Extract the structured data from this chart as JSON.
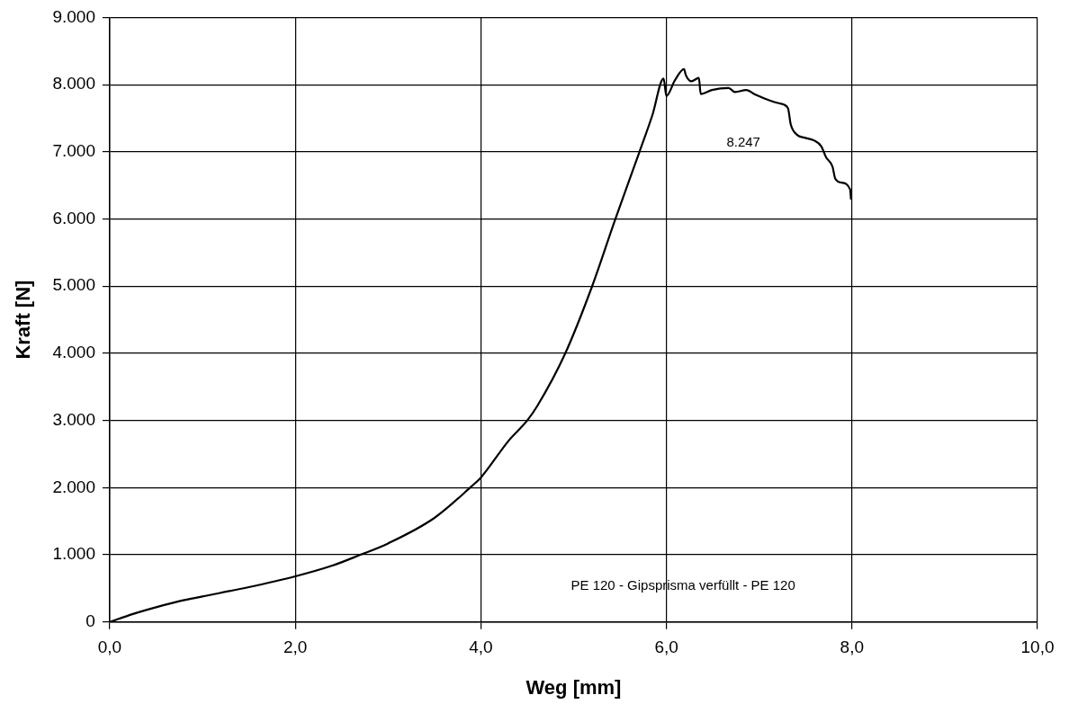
{
  "chart_data": {
    "type": "line",
    "xlabel": "Weg [mm]",
    "ylabel": "Kraft [N]",
    "annotations": [
      "8.247",
      "PE 120 - Gipsprisma verfüllt - PE 120"
    ],
    "xlim": [
      0,
      10
    ],
    "ylim": [
      0,
      9000
    ],
    "xticks": [
      {
        "value": 0,
        "label": "0,0"
      },
      {
        "value": 2,
        "label": "2,0"
      },
      {
        "value": 4,
        "label": "4,0"
      },
      {
        "value": 6,
        "label": "6,0"
      },
      {
        "value": 8,
        "label": "8,0"
      },
      {
        "value": 10,
        "label": "10,0"
      }
    ],
    "yticks": [
      0,
      {
        "value": 1000,
        "label": "1.000"
      },
      {
        "value": 2000,
        "label": "2.000"
      },
      {
        "value": 3000,
        "label": "3.000"
      },
      {
        "value": 4000,
        "label": "4.000"
      },
      {
        "value": 5000,
        "label": "5.000"
      },
      {
        "value": 6000,
        "label": "6.000"
      },
      {
        "value": 7000,
        "label": "7.000"
      },
      {
        "value": 8000,
        "label": "8.000"
      },
      {
        "value": 9000,
        "label": "9.000"
      }
    ],
    "grid": true,
    "legend": false,
    "marker": "none",
    "line_style": "solid",
    "series": [
      {
        "color": "#000000",
        "x": [
          0,
          0.25,
          0.5,
          0.75,
          1.0,
          1.5,
          2.0,
          2.4,
          2.7,
          3.0,
          3.5,
          3.9,
          4.0,
          4.3,
          4.5,
          4.61,
          4.91,
          5.2,
          5.45,
          5.71,
          5.85,
          5.97,
          6.0,
          6.09,
          6.19,
          6.21,
          6.27,
          6.35,
          6.37,
          6.49,
          6.67,
          6.74,
          6.86,
          6.96,
          7.12,
          7.22,
          7.31,
          7.34,
          7.41,
          7.49,
          7.59,
          7.67,
          7.72,
          7.79,
          7.82,
          7.89,
          7.98,
          7.99
        ],
        "values": [
          0,
          120,
          220,
          310,
          380,
          520,
          680,
          840,
          1000,
          1170,
          1550,
          2020,
          2150,
          2700,
          3000,
          3220,
          4000,
          5000,
          6000,
          7000,
          7550,
          8090,
          7830,
          8060,
          8230,
          8140,
          8050,
          8100,
          7860,
          7920,
          7950,
          7890,
          7920,
          7850,
          7760,
          7720,
          7650,
          7410,
          7250,
          7210,
          7170,
          7080,
          6920,
          6780,
          6600,
          6540,
          6440,
          6290
        ]
      }
    ]
  }
}
